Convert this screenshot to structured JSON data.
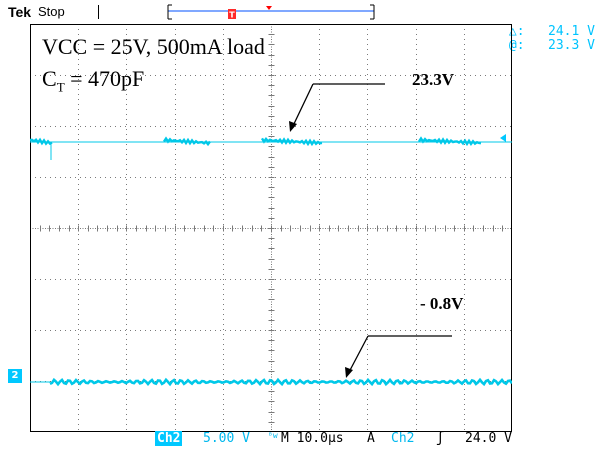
{
  "header": {
    "brand": "Tek",
    "status": "Stop",
    "trigger_marker": "T"
  },
  "measurements": {
    "delta_symbol": "△:",
    "delta_value": "24.1 V",
    "at_symbol": "@:",
    "at_value": "23.3 V"
  },
  "annotations": {
    "title_line1": "VCC = 25V, 500mA load",
    "title_line2_prefix": "C",
    "title_line2_sub": "T",
    "title_line2_suffix": " = 470pF",
    "high_level": "23.3V",
    "low_level": "- 0.8V"
  },
  "channel_marker": "2",
  "footer": {
    "channel": "Ch2",
    "volts_div": "5.00 V",
    "bw_symbol": "ᴮw",
    "timebase": "M 10.0µs",
    "acq_mode": "A",
    "trigger_channel": "Ch2",
    "trigger_slope": "ʃ",
    "trigger_level": "24.0 V"
  },
  "colors": {
    "trace": "#00c8e8",
    "graticule": "#7a7a7a",
    "trigger_marker": "#ff0000"
  }
}
